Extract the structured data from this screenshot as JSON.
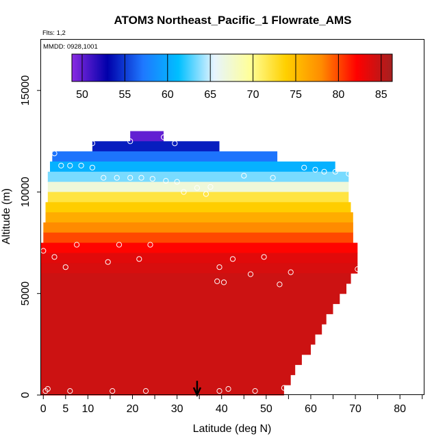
{
  "chart_data": {
    "type": "heatmap",
    "title": "ATOM3 Northeast_Pacific_1 Flowrate_AMS",
    "annotations": [
      "Flts: 1,2",
      "MMDD: 0928,1001"
    ],
    "xlabel": "Latitude (deg N)",
    "ylabel": "Altitude (m)",
    "xlim": [
      -0.5,
      85.5
    ],
    "ylim": [
      0,
      17500
    ],
    "x_ticks": [
      0,
      5,
      10,
      20,
      30,
      40,
      50,
      60,
      70,
      80
    ],
    "y_ticks": [
      0,
      5000,
      10000,
      15000
    ],
    "grid": false,
    "colorbar": {
      "ticks": [
        50,
        55,
        60,
        65,
        70,
        75,
        80,
        85
      ],
      "range": [
        48.8,
        86.3
      ],
      "colors": [
        "#8a2be2",
        "#0000aa",
        "#1e78ff",
        "#00bfff",
        "#e6f4ff",
        "#ffff99",
        "#ffd000",
        "#ff8c00",
        "#ff0000",
        "#a52020"
      ]
    },
    "field_layers": [
      {
        "alt_bottom": 12500,
        "alt_top": 13000,
        "lat_min": 19.5,
        "lat_max": 27.0,
        "value": 50
      },
      {
        "alt_bottom": 12000,
        "alt_top": 12500,
        "lat_min": 11.0,
        "lat_max": 39.5,
        "value": 54
      },
      {
        "alt_bottom": 11500,
        "alt_top": 12000,
        "lat_min": 2.0,
        "lat_max": 52.5,
        "value": 57
      },
      {
        "alt_bottom": 11000,
        "alt_top": 11500,
        "lat_min": 1.5,
        "lat_max": 65.5,
        "value": 60.5
      },
      {
        "alt_bottom": 10500,
        "alt_top": 11000,
        "lat_min": 1.0,
        "lat_max": 68.5,
        "value": 63.5
      },
      {
        "alt_bottom": 10000,
        "alt_top": 10500,
        "lat_min": 1.0,
        "lat_max": 68.5,
        "value": 67
      },
      {
        "alt_bottom": 9500,
        "alt_top": 10000,
        "lat_min": 1.0,
        "lat_max": 68.5,
        "value": 72
      },
      {
        "alt_bottom": 9000,
        "alt_top": 9500,
        "lat_min": 0.5,
        "lat_max": 69.0,
        "value": 74
      },
      {
        "alt_bottom": 8500,
        "alt_top": 9000,
        "lat_min": 0.5,
        "lat_max": 69.5,
        "value": 76
      },
      {
        "alt_bottom": 8000,
        "alt_top": 8500,
        "lat_min": 0.0,
        "lat_max": 69.5,
        "value": 78
      },
      {
        "alt_bottom": 7500,
        "alt_top": 8000,
        "lat_min": 0.0,
        "lat_max": 69.5,
        "value": 80
      },
      {
        "alt_bottom": 7000,
        "alt_top": 7500,
        "lat_min": -0.5,
        "lat_max": 70.5,
        "value": 82
      },
      {
        "alt_bottom": 6500,
        "alt_top": 7000,
        "lat_min": -0.5,
        "lat_max": 70.5,
        "value": 83.5
      },
      {
        "alt_bottom": 6000,
        "alt_top": 6500,
        "lat_min": -0.5,
        "lat_max": 70.5,
        "value": 84
      },
      {
        "alt_bottom": 5500,
        "alt_top": 6000,
        "lat_min": -0.5,
        "lat_max": 69.0,
        "value": 84.5
      },
      {
        "alt_bottom": 5000,
        "alt_top": 5500,
        "lat_min": -0.5,
        "lat_max": 68.0,
        "value": 84.5
      },
      {
        "alt_bottom": 4500,
        "alt_top": 5000,
        "lat_min": -0.5,
        "lat_max": 66.5,
        "value": 84.5
      },
      {
        "alt_bottom": 4000,
        "alt_top": 4500,
        "lat_min": -0.5,
        "lat_max": 65.0,
        "value": 84.5
      },
      {
        "alt_bottom": 3500,
        "alt_top": 4000,
        "lat_min": -0.5,
        "lat_max": 63.5,
        "value": 84.5
      },
      {
        "alt_bottom": 3000,
        "alt_top": 3500,
        "lat_min": -0.5,
        "lat_max": 62.5,
        "value": 84.5
      },
      {
        "alt_bottom": 2500,
        "alt_top": 3000,
        "lat_min": -0.5,
        "lat_max": 61.0,
        "value": 84.5
      },
      {
        "alt_bottom": 2000,
        "alt_top": 2500,
        "lat_min": -0.5,
        "lat_max": 60.0,
        "value": 84.5
      },
      {
        "alt_bottom": 1500,
        "alt_top": 2000,
        "lat_min": -0.5,
        "lat_max": 58.0,
        "value": 84.5
      },
      {
        "alt_bottom": 1000,
        "alt_top": 1500,
        "lat_min": -0.5,
        "lat_max": 56.5,
        "value": 84.5
      },
      {
        "alt_bottom": 500,
        "alt_top": 1000,
        "lat_min": -0.5,
        "lat_max": 55.5,
        "value": 84.5
      },
      {
        "alt_bottom": 0,
        "alt_top": 500,
        "lat_min": -0.5,
        "lat_max": 54.0,
        "value": 84.5
      }
    ],
    "points": [
      {
        "lat": 27.0,
        "alt": 12700
      },
      {
        "lat": 19.5,
        "alt": 12500
      },
      {
        "lat": 29.5,
        "alt": 12400
      },
      {
        "lat": 11.0,
        "alt": 12400
      },
      {
        "lat": 2.5,
        "alt": 11900
      },
      {
        "lat": 4.0,
        "alt": 11300
      },
      {
        "lat": 6.0,
        "alt": 11300
      },
      {
        "lat": 8.5,
        "alt": 11300
      },
      {
        "lat": 11.0,
        "alt": 11200
      },
      {
        "lat": 58.5,
        "alt": 11200
      },
      {
        "lat": 61.0,
        "alt": 11100
      },
      {
        "lat": 63.0,
        "alt": 11000
      },
      {
        "lat": 65.5,
        "alt": 11000
      },
      {
        "lat": 68.5,
        "alt": 10900
      },
      {
        "lat": 13.5,
        "alt": 10700
      },
      {
        "lat": 16.5,
        "alt": 10700
      },
      {
        "lat": 19.5,
        "alt": 10700
      },
      {
        "lat": 22.0,
        "alt": 10700
      },
      {
        "lat": 24.5,
        "alt": 10650
      },
      {
        "lat": 27.5,
        "alt": 10550
      },
      {
        "lat": 30.0,
        "alt": 10500
      },
      {
        "lat": 45.0,
        "alt": 10800
      },
      {
        "lat": 51.5,
        "alt": 10700
      },
      {
        "lat": 34.5,
        "alt": 10200
      },
      {
        "lat": 37.5,
        "alt": 10250
      },
      {
        "lat": 31.5,
        "alt": 10000
      },
      {
        "lat": 36.5,
        "alt": 9900
      },
      {
        "lat": 0.0,
        "alt": 7100
      },
      {
        "lat": 7.5,
        "alt": 7400
      },
      {
        "lat": 17.0,
        "alt": 7400
      },
      {
        "lat": 24.0,
        "alt": 7400
      },
      {
        "lat": 2.5,
        "alt": 6800
      },
      {
        "lat": 21.5,
        "alt": 6700
      },
      {
        "lat": 14.5,
        "alt": 6550
      },
      {
        "lat": 5.0,
        "alt": 6300
      },
      {
        "lat": 42.5,
        "alt": 6700
      },
      {
        "lat": 49.5,
        "alt": 6800
      },
      {
        "lat": 39.5,
        "alt": 6300
      },
      {
        "lat": 46.5,
        "alt": 5950
      },
      {
        "lat": 55.5,
        "alt": 6050
      },
      {
        "lat": 39.0,
        "alt": 5600
      },
      {
        "lat": 40.5,
        "alt": 5550
      },
      {
        "lat": 53.0,
        "alt": 5450
      },
      {
        "lat": 70.5,
        "alt": 6200
      },
      {
        "lat": 1.0,
        "alt": 300
      },
      {
        "lat": 0.5,
        "alt": 200
      },
      {
        "lat": 6.0,
        "alt": 200
      },
      {
        "lat": 15.5,
        "alt": 200
      },
      {
        "lat": 23.0,
        "alt": 200
      },
      {
        "lat": 39.5,
        "alt": 200
      },
      {
        "lat": 41.5,
        "alt": 300
      },
      {
        "lat": 47.5,
        "alt": 200
      },
      {
        "lat": 54.0,
        "alt": 350
      }
    ],
    "marker": {
      "lat": 34.5,
      "alt_top": 700,
      "alt_bottom": 0,
      "symbol": "arrow-down"
    }
  }
}
